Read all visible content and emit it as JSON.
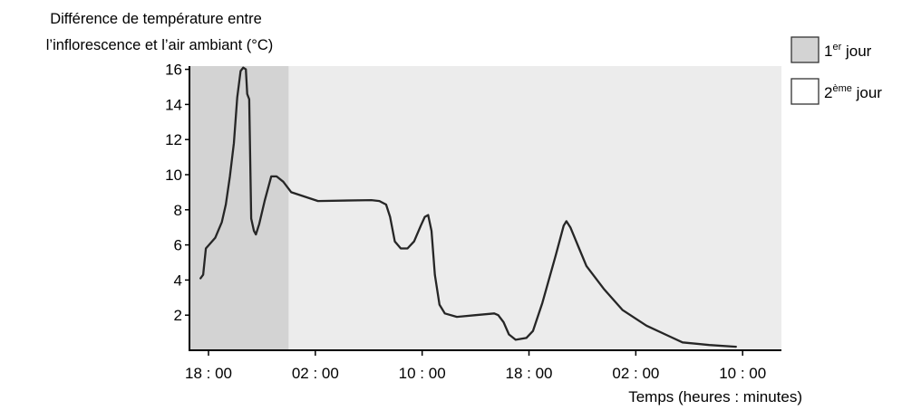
{
  "chart_data": {
    "type": "line",
    "ylabel_lines": [
      "Différence de température entre",
      "l’inflorescence et l’air ambiant (°C)"
    ],
    "xlabel": "Temps (heures : minutes)",
    "x_tick_labels": [
      "18 : 00",
      "02 : 00",
      "10 : 00",
      "18 : 00",
      "02 : 00",
      "10 : 00"
    ],
    "y_tick_labels": [
      "2",
      "4",
      "6",
      "8",
      "10",
      "12",
      "14",
      "16"
    ],
    "ylim": [
      0,
      16.5
    ],
    "xlim_hours": [
      -0.6,
      43.5
    ],
    "x_unit": "hours elapsed since the first 18 : 00 tick",
    "grid": false,
    "legend_position": "top-right",
    "legend": [
      {
        "base": "1",
        "sup": "er",
        "rest": " jour",
        "color": "#d3d3d3"
      },
      {
        "base": "2",
        "sup": "ème",
        "rest": " jour",
        "color": "#ffffff"
      }
    ],
    "day1_region_hours": [
      -0.6,
      6.0
    ],
    "day2_region_hours": [
      6.0,
      43.5
    ],
    "series": [
      {
        "points": [
          [
            -0.6,
            4.1
          ],
          [
            -0.4,
            4.3
          ],
          [
            -0.2,
            5.8
          ],
          [
            0.5,
            6.4
          ],
          [
            1.0,
            7.3
          ],
          [
            1.3,
            8.3
          ],
          [
            1.6,
            9.9
          ],
          [
            1.9,
            11.8
          ],
          [
            2.15,
            14.4
          ],
          [
            2.4,
            15.9
          ],
          [
            2.6,
            16.1
          ],
          [
            2.8,
            16.0
          ],
          [
            2.9,
            14.6
          ],
          [
            3.05,
            14.3
          ],
          [
            3.2,
            7.5
          ],
          [
            3.4,
            6.8
          ],
          [
            3.55,
            6.6
          ],
          [
            3.8,
            7.2
          ],
          [
            4.2,
            8.5
          ],
          [
            4.7,
            9.9
          ],
          [
            5.1,
            9.9
          ],
          [
            5.6,
            9.6
          ],
          [
            6.2,
            9.0
          ],
          [
            8.2,
            8.5
          ],
          [
            12.2,
            8.55
          ],
          [
            12.8,
            8.5
          ],
          [
            13.3,
            8.3
          ],
          [
            13.6,
            7.6
          ],
          [
            13.95,
            6.2
          ],
          [
            14.4,
            5.8
          ],
          [
            14.9,
            5.8
          ],
          [
            15.4,
            6.2
          ],
          [
            15.9,
            7.1
          ],
          [
            16.2,
            7.6
          ],
          [
            16.45,
            7.7
          ],
          [
            16.7,
            6.8
          ],
          [
            16.95,
            4.3
          ],
          [
            17.3,
            2.6
          ],
          [
            17.7,
            2.1
          ],
          [
            18.6,
            1.9
          ],
          [
            20.0,
            2.0
          ],
          [
            21.4,
            2.1
          ],
          [
            21.7,
            2.0
          ],
          [
            22.1,
            1.6
          ],
          [
            22.5,
            0.9
          ],
          [
            23.0,
            0.6
          ],
          [
            23.8,
            0.7
          ],
          [
            24.3,
            1.1
          ],
          [
            25.0,
            2.7
          ],
          [
            26.0,
            5.4
          ],
          [
            26.6,
            7.1
          ],
          [
            26.8,
            7.35
          ],
          [
            27.1,
            7.0
          ],
          [
            27.7,
            5.9
          ],
          [
            28.3,
            4.8
          ],
          [
            29.6,
            3.5
          ],
          [
            31.0,
            2.3
          ],
          [
            32.8,
            1.4
          ],
          [
            34.5,
            0.8
          ],
          [
            35.5,
            0.45
          ],
          [
            37.5,
            0.3
          ],
          [
            39.5,
            0.2
          ]
        ]
      }
    ]
  }
}
